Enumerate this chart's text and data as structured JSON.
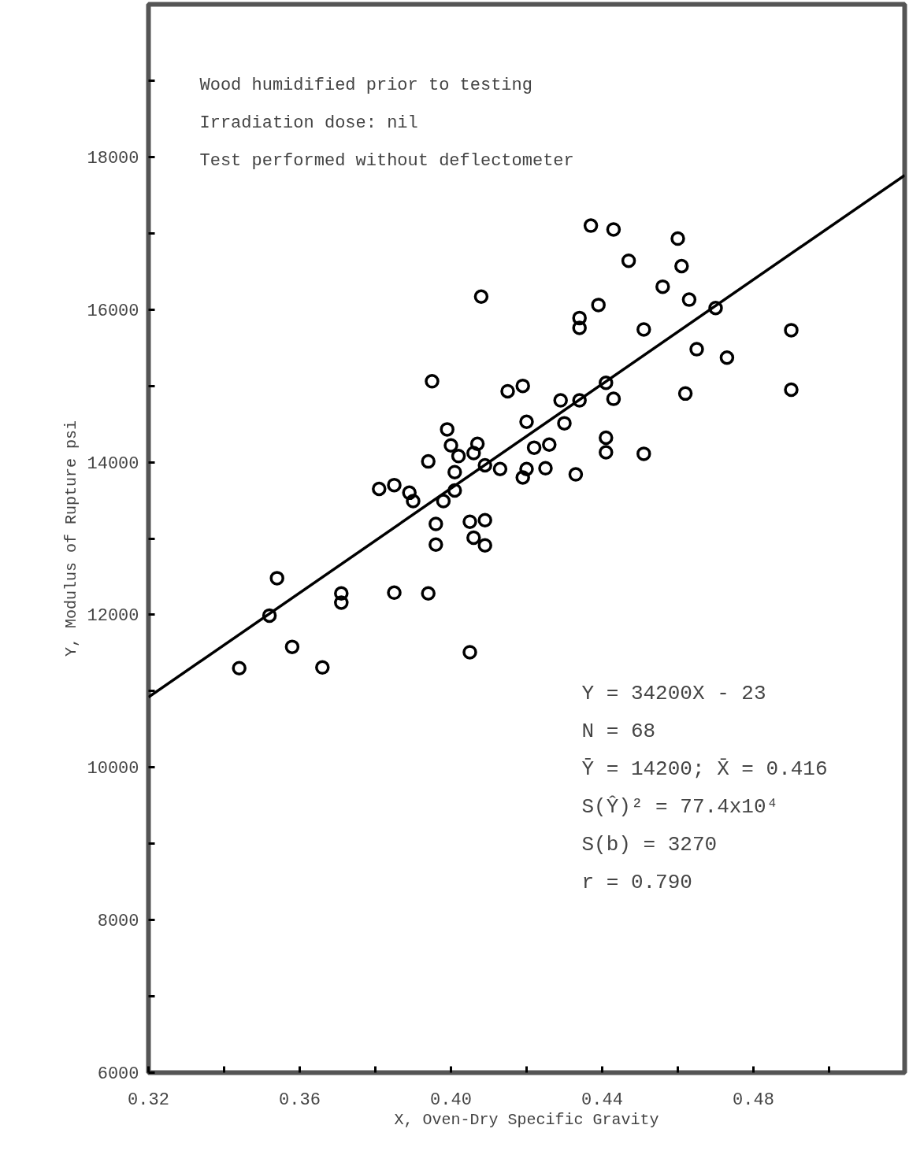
{
  "chart_data": {
    "type": "scatter",
    "xlabel": "X, Oven-Dry Specific Gravity",
    "ylabel": "Y, Modulus of Rupture psi",
    "xlim": [
      0.32,
      0.52
    ],
    "ylim": [
      6000,
      20000
    ],
    "xticks": [
      {
        "value": 0.32,
        "label": "0.32"
      },
      {
        "value": 0.34,
        "label": null
      },
      {
        "value": 0.36,
        "label": "0.36"
      },
      {
        "value": 0.38,
        "label": null
      },
      {
        "value": 0.4,
        "label": "0.40"
      },
      {
        "value": 0.42,
        "label": null
      },
      {
        "value": 0.44,
        "label": "0.44"
      },
      {
        "value": 0.46,
        "label": null
      },
      {
        "value": 0.48,
        "label": "0.48"
      },
      {
        "value": 0.5,
        "label": null
      }
    ],
    "yticks": [
      6000,
      {
        "value": 7000,
        "label": null
      },
      8000,
      {
        "value": 9000,
        "label": null
      },
      10000,
      {
        "value": 11000,
        "label": null
      },
      12000,
      {
        "value": 13000,
        "label": null
      },
      14000,
      {
        "value": 15000,
        "label": null
      },
      16000,
      {
        "value": 17000,
        "label": null
      },
      18000,
      {
        "value": 19000,
        "label": null
      }
    ],
    "x": [
      0.344,
      0.352,
      0.354,
      0.358,
      0.366,
      0.371,
      0.371,
      0.381,
      0.385,
      0.385,
      0.389,
      0.39,
      0.394,
      0.394,
      0.395,
      0.396,
      0.396,
      0.398,
      0.399,
      0.4,
      0.401,
      0.401,
      0.402,
      0.405,
      0.405,
      0.406,
      0.406,
      0.407,
      0.408,
      0.409,
      0.409,
      0.409,
      0.413,
      0.415,
      0.419,
      0.42,
      0.42,
      0.419,
      0.422,
      0.425,
      0.426,
      0.429,
      0.43,
      0.433,
      0.434,
      0.434,
      0.434,
      0.437,
      0.439,
      0.441,
      0.441,
      0.441,
      0.443,
      0.443,
      0.447,
      0.451,
      0.451,
      0.456,
      0.46,
      0.461,
      0.462,
      0.463,
      0.465,
      0.47,
      0.473,
      0.49,
      0.49
    ],
    "grid": false,
    "series": [
      {
        "marker": "circle",
        "color": "#000000",
        "values": [
          11300,
          11990,
          12480,
          11580,
          11310,
          12280,
          12160,
          13650,
          13700,
          12290,
          13600,
          13490,
          14010,
          12280,
          15060,
          13190,
          12920,
          13490,
          14430,
          14220,
          13870,
          13630,
          14080,
          11510,
          13220,
          13010,
          14120,
          14240,
          16170,
          13960,
          13240,
          12910,
          13910,
          14930,
          15000,
          14530,
          13910,
          13800,
          14190,
          13920,
          14230,
          14810,
          14510,
          13840,
          15890,
          15760,
          14810,
          17100,
          16060,
          15040,
          14320,
          14130,
          14830,
          17050,
          16640,
          14110,
          15740,
          16300,
          16930,
          16570,
          14900,
          16130,
          15480,
          16020,
          15370,
          15730,
          14950
        ]
      },
      {
        "type": "line",
        "color": "#000000",
        "x": [
          0.32,
          0.52
        ],
        "values": [
          10920,
          17760
        ]
      }
    ],
    "annotations": [
      "Wood humidified prior to testing",
      "Irradiation dose:  nil",
      "Test performed without deflectometer",
      "Y = 34200X - 23",
      "N = 68",
      "Ȳ = 14200; X̄ = 0.416",
      "S(Ŷ)² = 77.4x10⁴",
      "S(b) = 3270",
      "r = 0.790"
    ]
  }
}
